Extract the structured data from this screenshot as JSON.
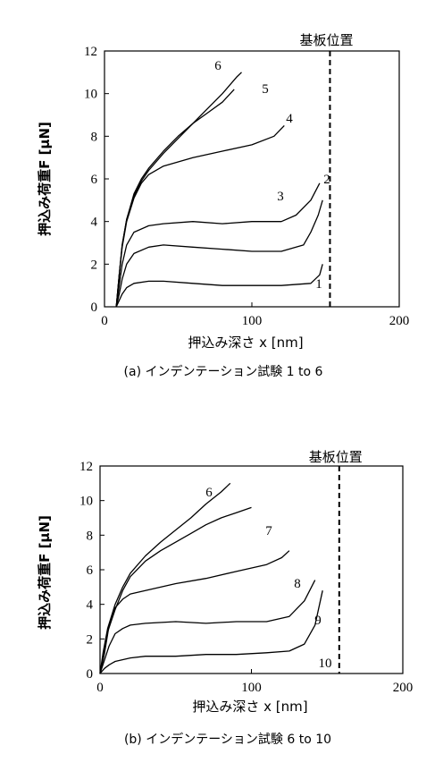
{
  "chart_data": [
    {
      "type": "line",
      "caption": "(a) インデンテーション試験 1 to 6",
      "xlabel": "押込み深さ x [nm]",
      "ylabel": "押込み荷重F [μN]",
      "xlim": [
        0,
        200
      ],
      "ylim": [
        0,
        12
      ],
      "xticks": [
        "0",
        "100",
        "200"
      ],
      "yticks": [
        "0",
        "2",
        "4",
        "6",
        "8",
        "10",
        "12"
      ],
      "grid": false,
      "legend": "none",
      "reference_line": {
        "label": "基板位置",
        "x": 153
      },
      "series": [
        {
          "name": "1",
          "x": [
            8,
            10,
            12,
            15,
            20,
            30,
            40,
            60,
            80,
            100,
            120,
            140,
            146,
            148
          ],
          "y": [
            0,
            0.3,
            0.6,
            0.9,
            1.1,
            1.2,
            1.2,
            1.1,
            1.0,
            1.0,
            1.0,
            1.1,
            1.5,
            2.0
          ]
        },
        {
          "name": "2",
          "x": [
            8,
            10,
            12,
            15,
            20,
            30,
            40,
            60,
            80,
            100,
            120,
            135,
            140,
            145,
            148
          ],
          "y": [
            0,
            0.6,
            1.3,
            2.0,
            2.5,
            2.8,
            2.9,
            2.8,
            2.7,
            2.6,
            2.6,
            2.9,
            3.5,
            4.3,
            5.0
          ]
        },
        {
          "name": "3",
          "x": [
            8,
            10,
            12,
            15,
            20,
            30,
            40,
            60,
            80,
            100,
            120,
            130,
            140,
            146
          ],
          "y": [
            0,
            1.0,
            2.0,
            2.9,
            3.5,
            3.8,
            3.9,
            4.0,
            3.9,
            4.0,
            4.0,
            4.3,
            5.0,
            5.8
          ]
        },
        {
          "name": "4",
          "x": [
            8,
            10,
            12,
            15,
            20,
            25,
            30,
            40,
            60,
            80,
            100,
            115,
            122
          ],
          "y": [
            0,
            1.5,
            2.8,
            4.0,
            5.1,
            5.8,
            6.2,
            6.6,
            7.0,
            7.3,
            7.6,
            8.0,
            8.5
          ]
        },
        {
          "name": "5",
          "x": [
            8,
            10,
            12,
            15,
            20,
            25,
            30,
            40,
            50,
            60,
            70,
            80,
            88
          ],
          "y": [
            0,
            1.5,
            2.9,
            4.1,
            5.3,
            6.0,
            6.5,
            7.3,
            8.0,
            8.6,
            9.1,
            9.6,
            10.2
          ]
        },
        {
          "name": "6",
          "x": [
            8,
            10,
            12,
            15,
            20,
            25,
            30,
            40,
            50,
            60,
            70,
            80,
            90,
            93
          ],
          "y": [
            0,
            1.5,
            2.9,
            4.1,
            5.2,
            5.9,
            6.4,
            7.2,
            7.9,
            8.6,
            9.3,
            10.0,
            10.8,
            11.0
          ]
        }
      ]
    },
    {
      "type": "line",
      "caption": "(b) インデンテーション試験 6 to 10",
      "xlabel": "押込み深さ x [nm]",
      "ylabel": "押込み荷重F [μN]",
      "xlim": [
        0,
        200
      ],
      "ylim": [
        0,
        12
      ],
      "xticks": [
        "0",
        "100",
        "200"
      ],
      "yticks": [
        "0",
        "2",
        "4",
        "6",
        "8",
        "10",
        "12"
      ],
      "grid": false,
      "legend": "none",
      "reference_line": {
        "label": "基板位置",
        "x": 158
      },
      "series": [
        {
          "name": "6",
          "x": [
            0,
            2,
            5,
            10,
            15,
            20,
            30,
            40,
            50,
            60,
            70,
            80,
            86
          ],
          "y": [
            0,
            1.2,
            2.6,
            4.0,
            5.0,
            5.8,
            6.8,
            7.6,
            8.3,
            9.0,
            9.8,
            10.5,
            11.0
          ]
        },
        {
          "name": "7",
          "x": [
            0,
            2,
            5,
            10,
            15,
            20,
            30,
            40,
            50,
            60,
            70,
            80,
            90,
            100
          ],
          "y": [
            0,
            1.0,
            2.4,
            3.7,
            4.8,
            5.6,
            6.5,
            7.1,
            7.6,
            8.1,
            8.6,
            9.0,
            9.3,
            9.6
          ]
        },
        {
          "name": "8",
          "x": [
            0,
            3,
            6,
            10,
            15,
            20,
            30,
            50,
            70,
            90,
            110,
            120,
            125
          ],
          "y": [
            0,
            1.2,
            2.8,
            3.8,
            4.3,
            4.6,
            4.8,
            5.2,
            5.5,
            5.9,
            6.3,
            6.7,
            7.1
          ]
        },
        {
          "name": "9",
          "x": [
            0,
            3,
            6,
            10,
            15,
            20,
            30,
            50,
            70,
            90,
            110,
            125,
            135,
            142
          ],
          "y": [
            0,
            0.8,
            1.6,
            2.3,
            2.6,
            2.8,
            2.9,
            3.0,
            2.9,
            3.0,
            3.0,
            3.3,
            4.2,
            5.4
          ]
        },
        {
          "name": "10",
          "x": [
            0,
            3,
            6,
            10,
            20,
            30,
            50,
            70,
            90,
            110,
            125,
            135,
            142,
            147
          ],
          "y": [
            0,
            0.3,
            0.5,
            0.7,
            0.9,
            1.0,
            1.0,
            1.1,
            1.1,
            1.2,
            1.3,
            1.7,
            2.8,
            4.8
          ]
        }
      ]
    }
  ]
}
